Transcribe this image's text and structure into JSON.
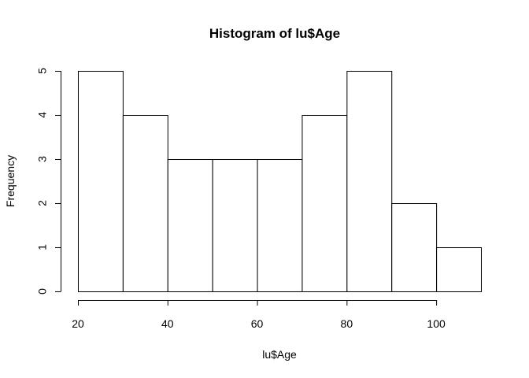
{
  "chart_data": {
    "type": "histogram",
    "title": "Histogram of lu$Age",
    "xlabel": "lu$Age",
    "ylabel": "Frequency",
    "bins": [
      {
        "start": 20,
        "end": 30,
        "count": 5
      },
      {
        "start": 30,
        "end": 40,
        "count": 4
      },
      {
        "start": 40,
        "end": 50,
        "count": 3
      },
      {
        "start": 50,
        "end": 60,
        "count": 3
      },
      {
        "start": 60,
        "end": 70,
        "count": 3
      },
      {
        "start": 70,
        "end": 80,
        "count": 4
      },
      {
        "start": 80,
        "end": 90,
        "count": 5
      },
      {
        "start": 90,
        "end": 100,
        "count": 2
      },
      {
        "start": 100,
        "end": 110,
        "count": 1
      }
    ],
    "xticks": [
      20,
      40,
      60,
      80,
      100
    ],
    "yticks": [
      0,
      1,
      2,
      3,
      4,
      5
    ],
    "xlim": [
      20,
      110
    ],
    "ylim": [
      0,
      5
    ],
    "grid": false,
    "colors": {
      "bar_fill": "#ffffff",
      "bar_stroke": "#000000"
    }
  }
}
